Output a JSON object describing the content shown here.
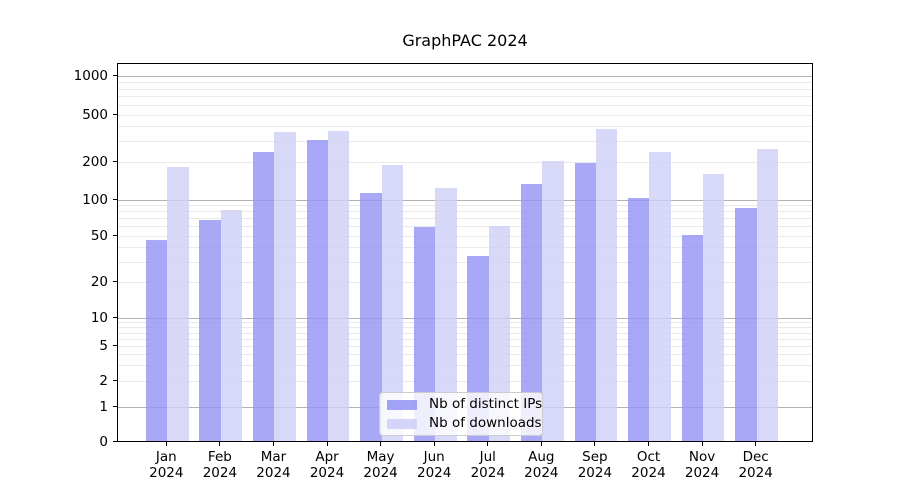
{
  "chart_data": {
    "type": "bar",
    "title": "GraphPAC 2024",
    "categories": [
      "Jan",
      "Feb",
      "Mar",
      "Apr",
      "May",
      "Jun",
      "Jul",
      "Aug",
      "Sep",
      "Oct",
      "Nov",
      "Dec"
    ],
    "x_tick_second_line": "2024",
    "series": [
      {
        "name": "Nb of distinct IPs",
        "color": "#9292f4",
        "values": [
          45,
          67,
          240,
          302,
          110,
          58,
          33,
          132,
          191,
          101,
          50,
          84
        ]
      },
      {
        "name": "Nb of downloads",
        "color": "#cecef7",
        "values": [
          180,
          81,
          348,
          357,
          186,
          122,
          59,
          200,
          370,
          237,
          156,
          253
        ]
      }
    ],
    "y_axis": {
      "scale": "pseudo-log",
      "ticks": [
        0,
        1,
        2,
        5,
        10,
        20,
        50,
        100,
        200,
        500,
        1000
      ],
      "tick_labels": [
        "0",
        "1",
        "2",
        "5",
        "10",
        "20",
        "50",
        "100",
        "200",
        "500",
        "1000"
      ],
      "range_top": 1300
    },
    "grid": {
      "orientation": "horizontal",
      "major_color": "#b3b3b3",
      "minor_color": "#e9e9e9",
      "major_lines_at": [
        1,
        10,
        100,
        1000
      ]
    },
    "legend": {
      "position": "lower-center",
      "entries": [
        "Nb of distinct IPs",
        "Nb of downloads"
      ]
    }
  }
}
